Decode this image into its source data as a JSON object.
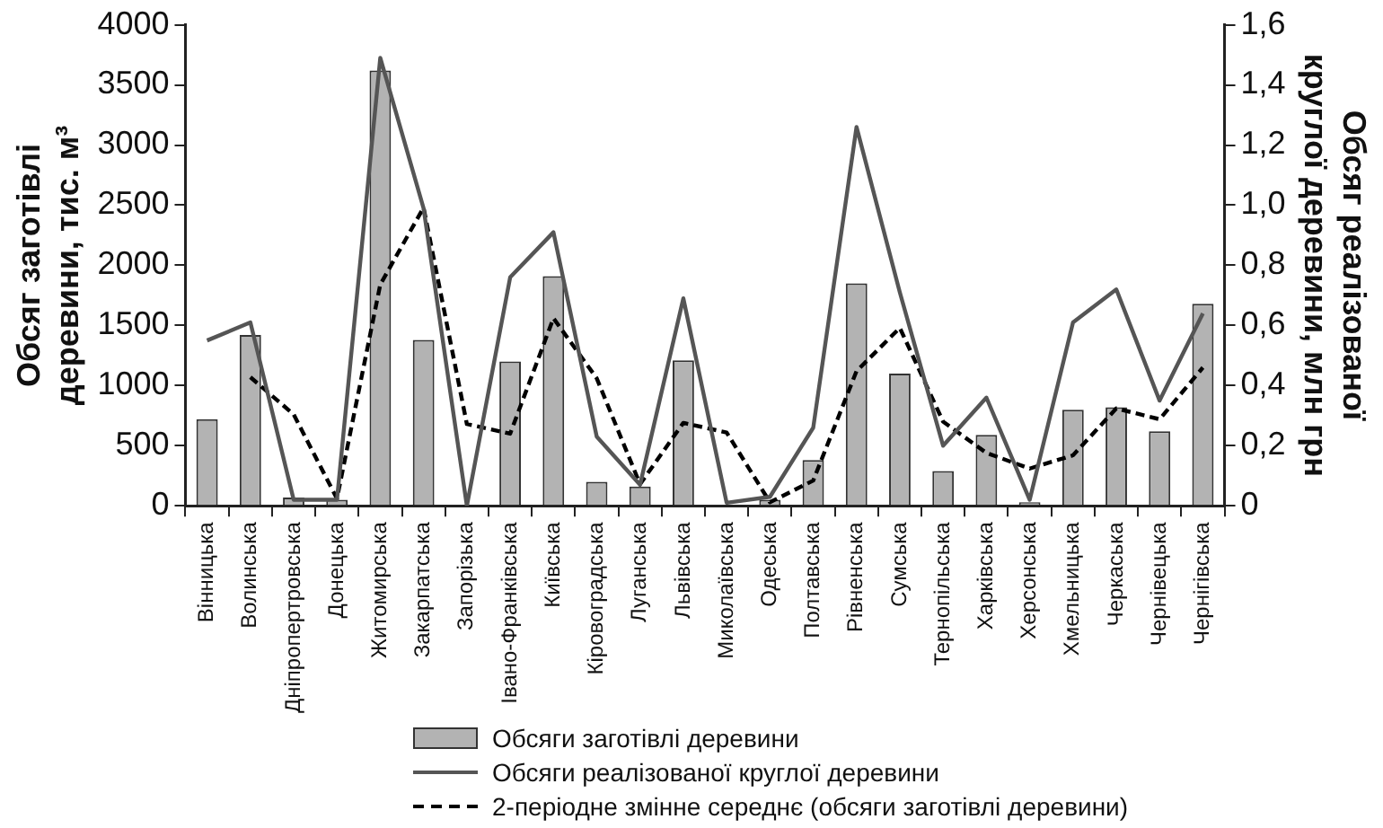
{
  "chart_data": {
    "type": "bar",
    "ylabel": "Обсяг заготівлі деревини, тис. м³",
    "y2label": "Обсяг реалізованої круглої деревини, млн грн",
    "categories": [
      "Вінницька",
      "Волинська",
      "Дніпропертровська",
      "Донецька",
      "Житомирська",
      "Закарпатська",
      "Запорізька",
      "Івано-Франківська",
      "Київська",
      "Кіровоградська",
      "Луганська",
      "Львівська",
      "Миколаївська",
      "Одеська",
      "Полтавська",
      "Рівненська",
      "Сумська",
      "Тернопільська",
      "Харківська",
      "Херсонська",
      "Хмельницька",
      "Черкаська",
      "Чернівецька",
      "Чернігівська"
    ],
    "series": [
      {
        "name": "Обсяги заготівлі деревини",
        "color": "#b3b3b3",
        "values": [
          720,
          1420,
          70,
          50,
          3620,
          1380,
          0,
          1200,
          1910,
          200,
          160,
          1210,
          0,
          50,
          380,
          1850,
          1100,
          290,
          590,
          30,
          800,
          820,
          620,
          1680
        ]
      },
      {
        "name": "Обсяги реалізованої круглої деревини",
        "type": "line",
        "axis": "y2",
        "color": "#555555",
        "line_style": "solid",
        "values": [
          0.55,
          0.61,
          0.02,
          0.02,
          1.49,
          0.99,
          0,
          0.76,
          0.91,
          0.23,
          0.07,
          0.69,
          0.01,
          0.03,
          0.26,
          1.26,
          0.71,
          0.2,
          0.36,
          0.02,
          0.61,
          0.72,
          0.35,
          0.64
        ]
      },
      {
        "name": "2-періодне змінне середнє (обсяги заготівлі деревини)",
        "type": "line",
        "color": "#000000",
        "line_style": "dashed",
        "values": [
          null,
          1070,
          760,
          60,
          1840,
          2480,
          680,
          600,
          1560,
          1060,
          180,
          690,
          610,
          30,
          210,
          1120,
          1480,
          700,
          440,
          310,
          420,
          810,
          720,
          1150
        ]
      }
    ],
    "ylim": [
      0,
      4000
    ],
    "yticks": [
      0,
      500,
      1000,
      1500,
      2000,
      2500,
      3000,
      3500,
      4000
    ],
    "y2lim": [
      0,
      1.6
    ],
    "y2ticks": [
      0,
      {
        "value": 0.2,
        "label": "0,2"
      },
      {
        "value": 0.4,
        "label": "0,4"
      },
      {
        "value": 0.6,
        "label": "0,6"
      },
      {
        "value": 0.8,
        "label": "0,8"
      },
      {
        "value": 1.0,
        "label": "1,0"
      },
      {
        "value": 1.2,
        "label": "1,2"
      },
      {
        "value": 1.4,
        "label": "1,4"
      },
      {
        "value": 1.6,
        "label": "1,6"
      }
    ],
    "grid": false,
    "legend": "bottom",
    "marker": "none"
  }
}
